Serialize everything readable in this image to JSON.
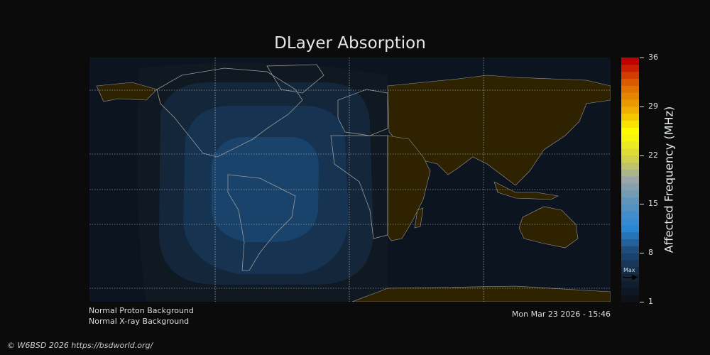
{
  "title": "DLayer Absorption",
  "colorbar": {
    "label": "Affected Frequency (MHz)",
    "ticks": [
      "36",
      "29",
      "22",
      "15",
      "8",
      "1"
    ],
    "range": [
      1,
      36
    ],
    "max_marker_label": "Max",
    "max_marker_value": 4.5,
    "stops": [
      "#0c111a",
      "#15273d",
      "#1d4a78",
      "#2a8ad8",
      "#5a92bd",
      "#9aa6a8",
      "#d8d640",
      "#ffff00",
      "#eeaa00",
      "#dd6600",
      "#c00000"
    ]
  },
  "map": {
    "ocean_color": "#0c1420",
    "night_land_color": "#2e2200",
    "absorption_levels_color": [
      "#121a24",
      "#14263a",
      "#163352",
      "#19436a"
    ]
  },
  "notes": {
    "proton": "Normal Proton Background",
    "xray": "Normal X-ray Background",
    "timestamp": "Mon Mar 23 2026 - 15:46"
  },
  "credit": "© W6BSD 2026 https://bsdworld.org/"
}
